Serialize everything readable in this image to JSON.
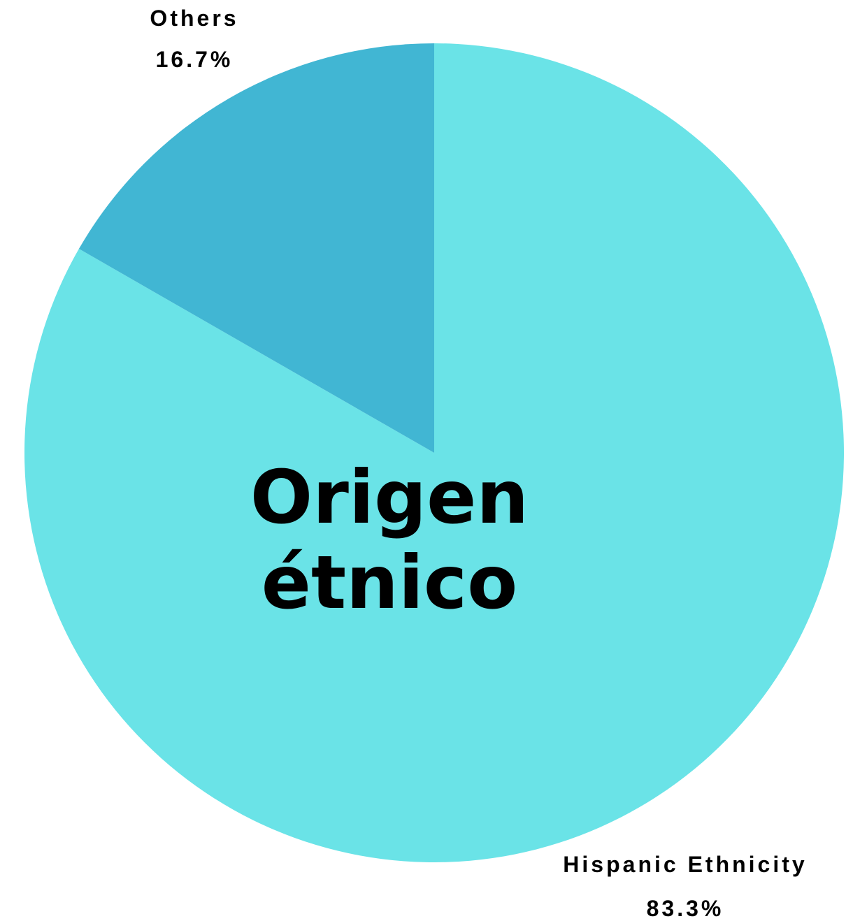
{
  "chart_data": {
    "type": "pie",
    "title_lines": [
      "Origen",
      "étnico"
    ],
    "start_angle_deg": 0,
    "direction": "clockwise",
    "slices": [
      {
        "label": "Hispanic Ethnicity",
        "value": 83.3,
        "value_label": "83.3%",
        "color": "#6ae3e7"
      },
      {
        "label": "Others",
        "value": 16.7,
        "value_label": "16.7%",
        "color": "#41b6d3"
      }
    ]
  }
}
